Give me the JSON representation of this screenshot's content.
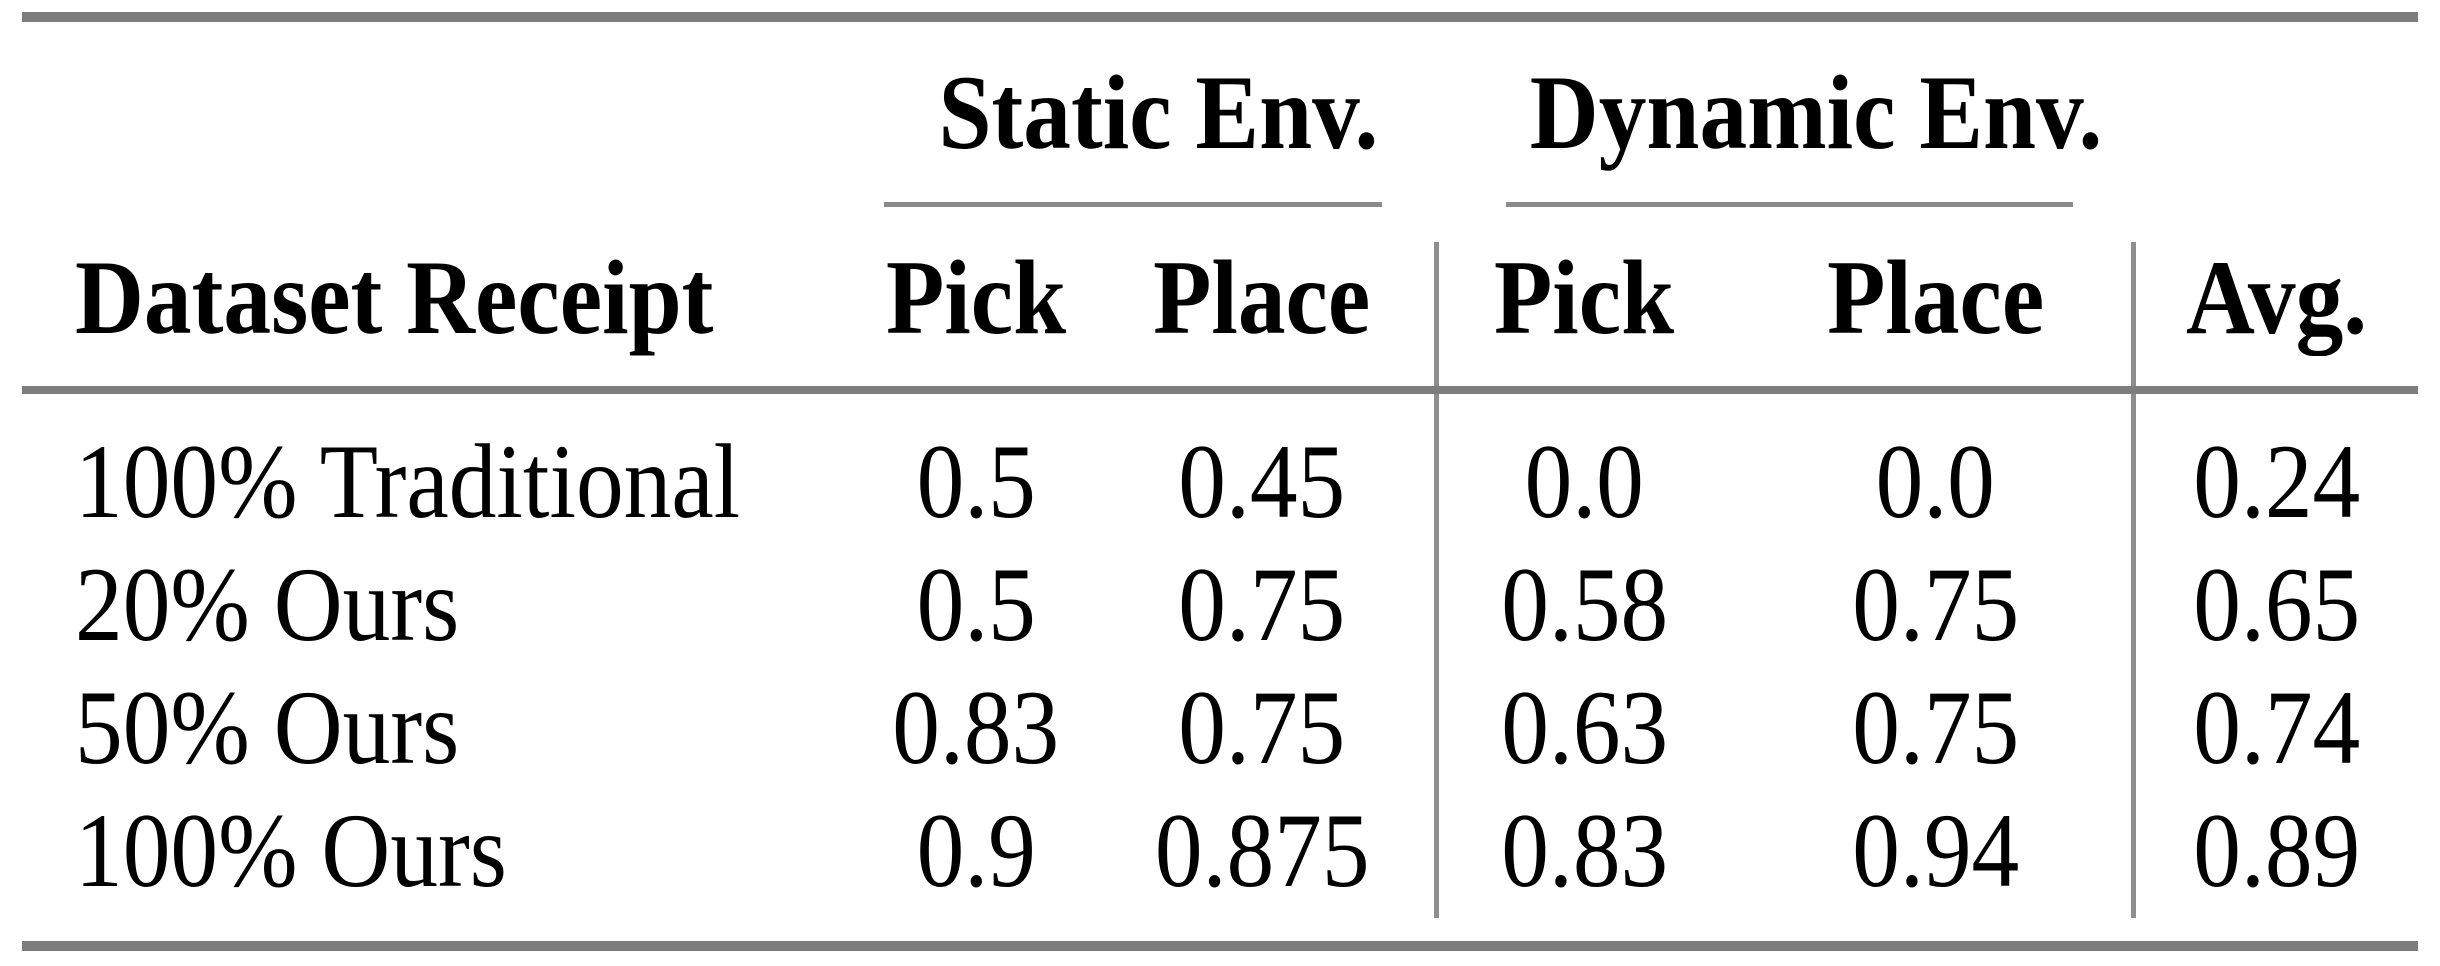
{
  "table": {
    "groups": {
      "static": "Static Env.",
      "dynamic": "Dynamic Env."
    },
    "headers": {
      "dataset": "Dataset Receipt",
      "static_pick": "Pick",
      "static_place": "Place",
      "dynamic_pick": "Pick",
      "dynamic_place": "Place",
      "avg": "Avg."
    },
    "rows": [
      {
        "label": "100% Traditional",
        "static_pick": "0.5",
        "static_place": "0.45",
        "dynamic_pick": "0.0",
        "dynamic_place": "0.0",
        "avg": "0.24"
      },
      {
        "label": "20% Ours",
        "static_pick": "0.5",
        "static_place": "0.75",
        "dynamic_pick": "0.58",
        "dynamic_place": "0.75",
        "avg": "0.65"
      },
      {
        "label": "50% Ours",
        "static_pick": "0.83",
        "static_place": "0.75",
        "dynamic_pick": "0.63",
        "dynamic_place": "0.75",
        "avg": "0.74"
      },
      {
        "label": "100% Ours",
        "static_pick": "0.9",
        "static_place": "0.875",
        "dynamic_pick": "0.83",
        "dynamic_place": "0.94",
        "avg": "0.89"
      }
    ],
    "colors": {
      "rule_heavy": "#7d7d7d",
      "rule_light": "#8a8a8a",
      "text": "#000000",
      "background": "#ffffff"
    }
  }
}
